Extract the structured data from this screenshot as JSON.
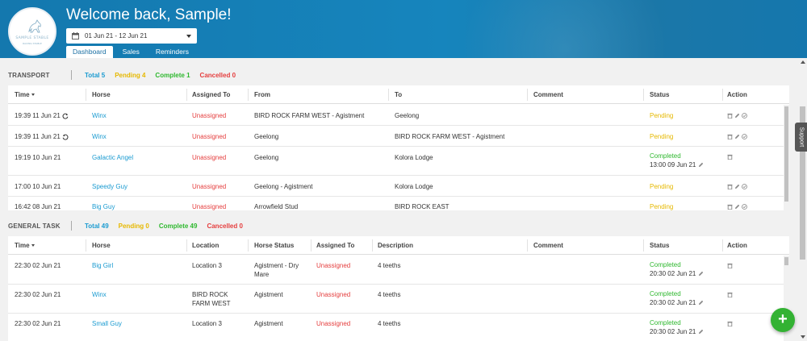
{
  "header": {
    "welcome": "Welcome back, Sample!",
    "logo_text": "SAMPLE STABLE",
    "logo_subtext": "RACING STABLE",
    "date_range": "01 Jun 21 - 12 Jun 21",
    "tabs": [
      {
        "label": "Dashboard",
        "active": true
      },
      {
        "label": "Sales",
        "active": false
      },
      {
        "label": "Reminders",
        "active": false
      }
    ]
  },
  "support_label": "Support",
  "transport": {
    "title": "TRANSPORT",
    "stats": {
      "total": "Total 5",
      "pending": "Pending 4",
      "complete": "Complete 1",
      "cancelled": "Cancelled 0"
    },
    "columns": [
      "Time",
      "Horse",
      "Assigned To",
      "From",
      "To",
      "Comment",
      "Status",
      "Action"
    ],
    "rows": [
      {
        "time": "19:39 11 Jun 21",
        "recur": "cw",
        "horse": "Winx",
        "assigned": "Unassigned",
        "from": "BIRD ROCK FARM WEST - Agistment",
        "to": "Geelong",
        "comment": "",
        "status": "Pending",
        "status_date": "",
        "actions": [
          "trash",
          "edit",
          "check"
        ]
      },
      {
        "time": "19:39 11 Jun 21",
        "recur": "ccw",
        "horse": "Winx",
        "assigned": "Unassigned",
        "from": "Geelong",
        "to": "BIRD ROCK FARM WEST - Agistment",
        "comment": "",
        "status": "Pending",
        "status_date": "",
        "actions": [
          "trash",
          "edit",
          "check"
        ]
      },
      {
        "time": "19:19 10 Jun 21",
        "recur": "",
        "horse": "Galactic Angel",
        "assigned": "Unassigned",
        "from": "Geelong",
        "to": "Kolora Lodge",
        "comment": "",
        "status": "Completed",
        "status_date": "13:00 09 Jun 21",
        "actions": [
          "trash"
        ]
      },
      {
        "time": "17:00 10 Jun 21",
        "recur": "",
        "horse": "Speedy Guy",
        "assigned": "Unassigned",
        "from": "Geelong - Agistment",
        "to": "Kolora Lodge",
        "comment": "",
        "status": "Pending",
        "status_date": "",
        "actions": [
          "trash",
          "edit",
          "check"
        ]
      },
      {
        "time": "16:42 08 Jun 21",
        "recur": "",
        "horse": "Big Guy",
        "assigned": "Unassigned",
        "from": "Arrowfield Stud",
        "to": "BIRD ROCK EAST",
        "comment": "",
        "status": "Pending",
        "status_date": "",
        "actions": [
          "trash",
          "edit",
          "check"
        ]
      }
    ]
  },
  "general_task": {
    "title": "GENERAL TASK",
    "stats": {
      "total": "Total 49",
      "pending": "Pending 0",
      "complete": "Complete 49",
      "cancelled": "Cancelled 0"
    },
    "columns": [
      "Time",
      "Horse",
      "Location",
      "Horse Status",
      "Assigned To",
      "Description",
      "Comment",
      "Status",
      "Action"
    ],
    "rows": [
      {
        "time": "22:30 02 Jun 21",
        "horse": "Big Girl",
        "location": "Location 3",
        "horse_status": "Agistment - Dry Mare",
        "assigned": "Unassigned",
        "description": "4 teeths",
        "comment": "",
        "status": "Completed",
        "status_date": "20:30 02 Jun 21"
      },
      {
        "time": "22:30 02 Jun 21",
        "horse": "Winx",
        "location": "BIRD ROCK FARM WEST",
        "horse_status": "Agistment",
        "assigned": "Unassigned",
        "description": "4 teeths",
        "comment": "",
        "status": "Completed",
        "status_date": "20:30 02 Jun 21"
      },
      {
        "time": "22:30 02 Jun 21",
        "horse": "Small Guy",
        "location": "Location 3",
        "horse_status": "Agistment",
        "assigned": "Unassigned",
        "description": "4 teeths",
        "comment": "",
        "status": "Completed",
        "status_date": "20:30 02 Jun 21"
      }
    ]
  },
  "fab_label": "+",
  "icons": {
    "trash": "trash-icon",
    "edit": "pencil-icon",
    "check": "check-circle-icon",
    "calendar": "calendar-icon"
  },
  "colors": {
    "header": "#1685bd",
    "total": "#1b9bd1",
    "pending": "#e6b800",
    "complete": "#2fb82f",
    "cancelled": "#e53e3e",
    "fab": "#33b233"
  }
}
